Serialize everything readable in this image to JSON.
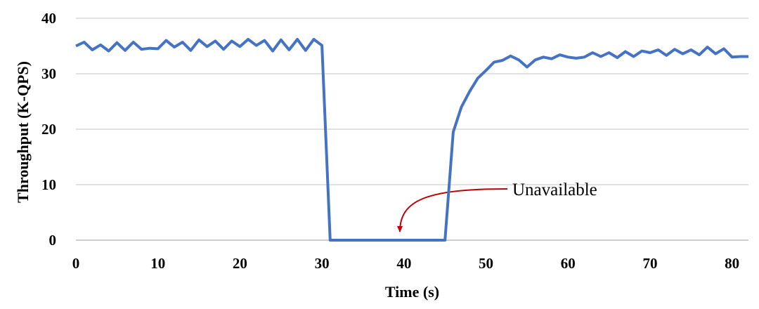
{
  "chart_data": {
    "type": "line",
    "title": "",
    "xlabel": "Time (s)",
    "ylabel": "Throughput (K-QPS)",
    "xlim": [
      0,
      82
    ],
    "ylim": [
      0,
      40
    ],
    "x_ticks": [
      0,
      10,
      20,
      30,
      40,
      50,
      60,
      70,
      80
    ],
    "y_ticks": [
      0,
      10,
      20,
      30,
      40
    ],
    "grid": "horizontal",
    "legend": "none",
    "series": [
      {
        "color": "#4472C4",
        "points": [
          [
            0,
            35.0
          ],
          [
            1,
            35.7
          ],
          [
            2,
            34.3
          ],
          [
            3,
            35.2
          ],
          [
            4,
            34.1
          ],
          [
            5,
            35.6
          ],
          [
            6,
            34.2
          ],
          [
            7,
            35.7
          ],
          [
            8,
            34.4
          ],
          [
            9,
            34.6
          ],
          [
            10,
            34.5
          ],
          [
            11,
            36.0
          ],
          [
            12,
            34.8
          ],
          [
            13,
            35.7
          ],
          [
            14,
            34.2
          ],
          [
            15,
            36.1
          ],
          [
            16,
            34.9
          ],
          [
            17,
            35.9
          ],
          [
            18,
            34.4
          ],
          [
            19,
            35.9
          ],
          [
            20,
            34.9
          ],
          [
            21,
            36.2
          ],
          [
            22,
            35.1
          ],
          [
            23,
            36.0
          ],
          [
            24,
            34.1
          ],
          [
            25,
            36.1
          ],
          [
            26,
            34.3
          ],
          [
            27,
            36.2
          ],
          [
            28,
            34.2
          ],
          [
            29,
            36.2
          ],
          [
            30,
            35.1
          ],
          [
            31,
            0
          ],
          [
            32,
            0
          ],
          [
            35,
            0
          ],
          [
            40,
            0
          ],
          [
            44,
            0
          ],
          [
            45,
            0
          ],
          [
            46,
            19.5
          ],
          [
            47,
            24.0
          ],
          [
            48,
            26.8
          ],
          [
            49,
            29.2
          ],
          [
            50,
            30.6
          ],
          [
            51,
            32.1
          ],
          [
            52,
            32.4
          ],
          [
            53,
            33.2
          ],
          [
            54,
            32.5
          ],
          [
            55,
            31.2
          ],
          [
            56,
            32.5
          ],
          [
            57,
            33.0
          ],
          [
            58,
            32.7
          ],
          [
            59,
            33.4
          ],
          [
            60,
            33.0
          ],
          [
            61,
            32.8
          ],
          [
            62,
            33.0
          ],
          [
            63,
            33.8
          ],
          [
            64,
            33.1
          ],
          [
            65,
            33.8
          ],
          [
            66,
            32.9
          ],
          [
            67,
            34.0
          ],
          [
            68,
            33.1
          ],
          [
            69,
            34.1
          ],
          [
            70,
            33.8
          ],
          [
            71,
            34.3
          ],
          [
            72,
            33.3
          ],
          [
            73,
            34.4
          ],
          [
            74,
            33.6
          ],
          [
            75,
            34.3
          ],
          [
            76,
            33.4
          ],
          [
            77,
            34.8
          ],
          [
            78,
            33.6
          ],
          [
            79,
            34.5
          ],
          [
            80,
            33.0
          ],
          [
            81,
            33.1
          ],
          [
            82,
            33.1
          ]
        ]
      }
    ],
    "annotations": [
      {
        "text": "Unavailable",
        "target": [
          39.5,
          0
        ],
        "color": "#C00000"
      }
    ]
  }
}
